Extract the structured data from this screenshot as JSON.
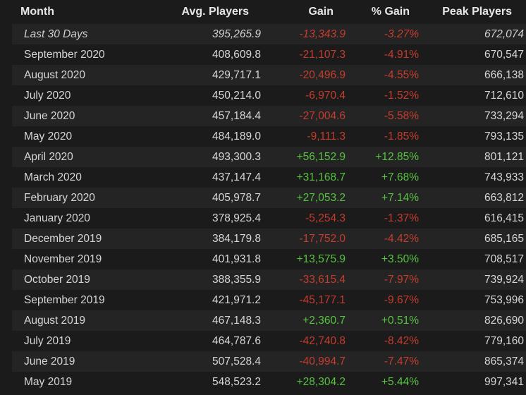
{
  "table": {
    "headers": {
      "month": "Month",
      "avg_players": "Avg. Players",
      "gain": "Gain",
      "pct_gain": "% Gain",
      "peak_players": "Peak Players"
    },
    "rows": [
      {
        "month": "Last 30 Days",
        "avg": "395,265.9",
        "gain": "-13,343.9",
        "pct": "-3.27%",
        "peak": "672,074",
        "trend": "neg"
      },
      {
        "month": "September 2020",
        "avg": "408,609.8",
        "gain": "-21,107.3",
        "pct": "-4.91%",
        "peak": "670,547",
        "trend": "neg"
      },
      {
        "month": "August 2020",
        "avg": "429,717.1",
        "gain": "-20,496.9",
        "pct": "-4.55%",
        "peak": "666,138",
        "trend": "neg"
      },
      {
        "month": "July 2020",
        "avg": "450,214.0",
        "gain": "-6,970.4",
        "pct": "-1.52%",
        "peak": "712,610",
        "trend": "neg"
      },
      {
        "month": "June 2020",
        "avg": "457,184.4",
        "gain": "-27,004.6",
        "pct": "-5.58%",
        "peak": "733,294",
        "trend": "neg"
      },
      {
        "month": "May 2020",
        "avg": "484,189.0",
        "gain": "-9,111.3",
        "pct": "-1.85%",
        "peak": "793,135",
        "trend": "neg"
      },
      {
        "month": "April 2020",
        "avg": "493,300.3",
        "gain": "+56,152.9",
        "pct": "+12.85%",
        "peak": "801,121",
        "trend": "pos"
      },
      {
        "month": "March 2020",
        "avg": "437,147.4",
        "gain": "+31,168.7",
        "pct": "+7.68%",
        "peak": "743,933",
        "trend": "pos"
      },
      {
        "month": "February 2020",
        "avg": "405,978.7",
        "gain": "+27,053.2",
        "pct": "+7.14%",
        "peak": "663,812",
        "trend": "pos"
      },
      {
        "month": "January 2020",
        "avg": "378,925.4",
        "gain": "-5,254.3",
        "pct": "-1.37%",
        "peak": "616,415",
        "trend": "neg"
      },
      {
        "month": "December 2019",
        "avg": "384,179.8",
        "gain": "-17,752.0",
        "pct": "-4.42%",
        "peak": "685,165",
        "trend": "neg"
      },
      {
        "month": "November 2019",
        "avg": "401,931.8",
        "gain": "+13,575.9",
        "pct": "+3.50%",
        "peak": "708,517",
        "trend": "pos"
      },
      {
        "month": "October 2019",
        "avg": "388,355.9",
        "gain": "-33,615.4",
        "pct": "-7.97%",
        "peak": "739,924",
        "trend": "neg"
      },
      {
        "month": "September 2019",
        "avg": "421,971.2",
        "gain": "-45,177.1",
        "pct": "-9.67%",
        "peak": "753,996",
        "trend": "neg"
      },
      {
        "month": "August 2019",
        "avg": "467,148.3",
        "gain": "+2,360.7",
        "pct": "+0.51%",
        "peak": "826,690",
        "trend": "pos"
      },
      {
        "month": "July 2019",
        "avg": "464,787.6",
        "gain": "-42,740.8",
        "pct": "-8.42%",
        "peak": "779,160",
        "trend": "neg"
      },
      {
        "month": "June 2019",
        "avg": "507,528.4",
        "gain": "-40,994.7",
        "pct": "-7.47%",
        "peak": "865,374",
        "trend": "neg"
      },
      {
        "month": "May 2019",
        "avg": "548,523.2",
        "gain": "+28,304.2",
        "pct": "+5.44%",
        "peak": "997,341",
        "trend": "pos"
      }
    ]
  },
  "colors": {
    "background": "#1b1b1b",
    "row_alt": "#242424",
    "negative": "#c63c2d",
    "positive": "#57c240",
    "text": "#d6d6d6"
  }
}
